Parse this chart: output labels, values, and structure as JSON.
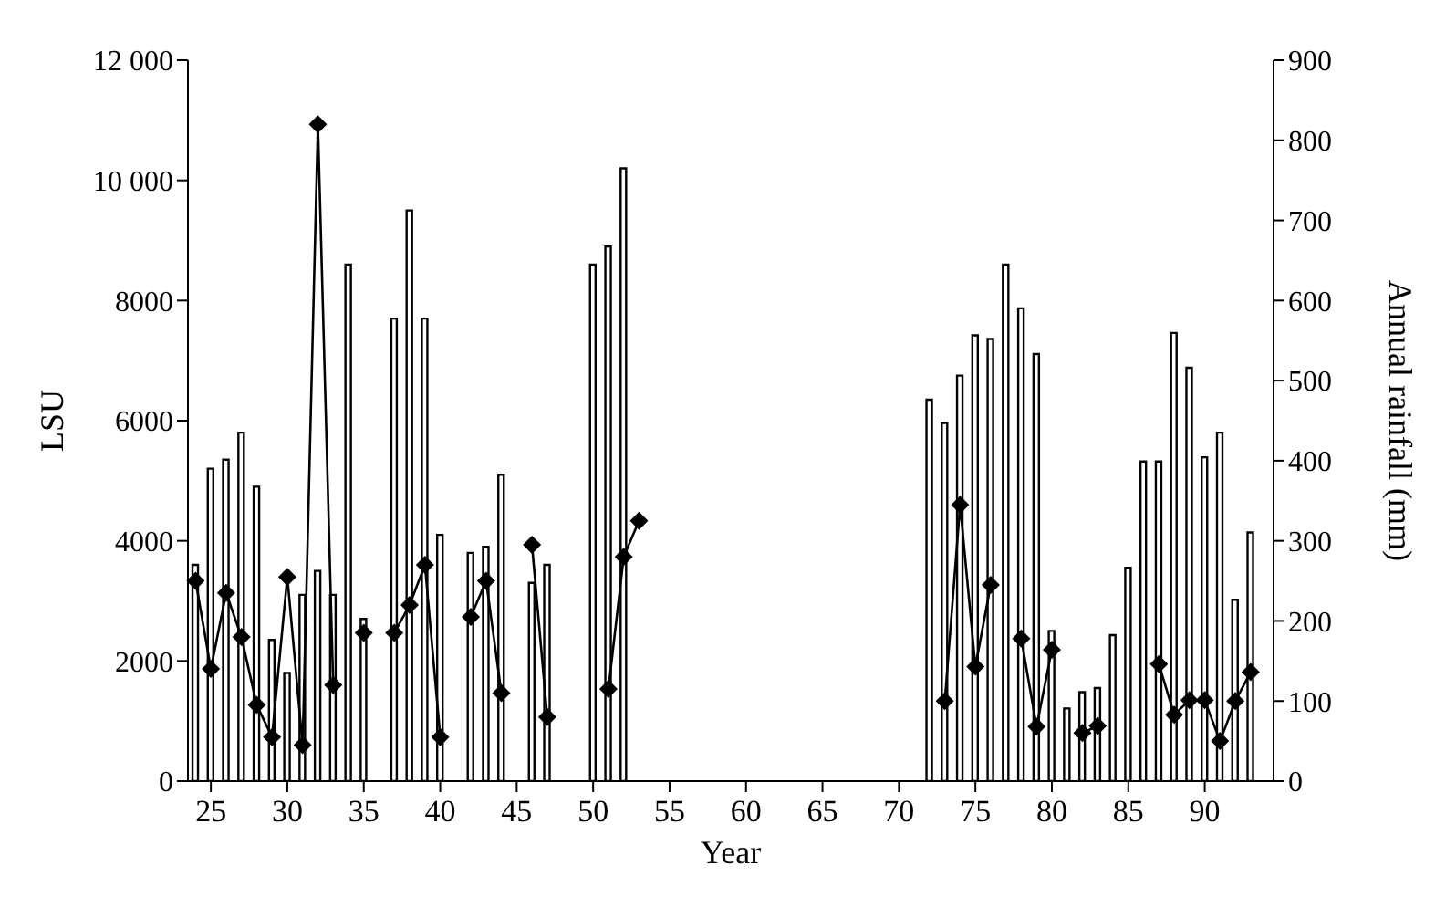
{
  "chart_data": {
    "type": "bar",
    "xlabel": "Year",
    "ylabel": "LSU",
    "y2label": "Annual rainfall (mm)",
    "categories": [
      null,
      "25",
      null,
      null,
      null,
      null,
      "30",
      null,
      null,
      null,
      null,
      "35",
      null,
      null,
      null,
      null,
      "40",
      null,
      null,
      null,
      null,
      "45",
      null,
      null,
      null,
      null,
      "50",
      null,
      null,
      null,
      null,
      "55",
      null,
      null,
      null,
      null,
      "60",
      null,
      null,
      null,
      null,
      "65",
      null,
      null,
      null,
      null,
      "70",
      null,
      null,
      null,
      null,
      "75",
      null,
      null,
      null,
      null,
      "80",
      null,
      null,
      null,
      null,
      "85",
      null,
      null,
      null,
      null,
      "90",
      null,
      null,
      null,
      null
    ],
    "series": [
      {
        "color": "#000000",
        "values": [
          3600,
          5200,
          5350,
          5800,
          4900,
          2350,
          1800,
          3100,
          3500,
          3100,
          8600,
          2700,
          null,
          7700,
          9500,
          7700,
          4100,
          null,
          3800,
          3900,
          5100,
          null,
          3300,
          3600,
          null,
          null,
          8600,
          8900,
          10200,
          null,
          null,
          null,
          null,
          null,
          null,
          null,
          null,
          null,
          null,
          null,
          null,
          null,
          null,
          null,
          null,
          null,
          null,
          null,
          6350,
          5960,
          6750,
          7420,
          7360,
          8600,
          7870,
          7110,
          2500,
          1210,
          1480,
          1550,
          2430,
          3550,
          5320,
          5320,
          7460,
          6880,
          5390,
          5800,
          3020,
          4140,
          null
        ]
      },
      {
        "type": "line",
        "axis": "y2",
        "color": "#000000",
        "marker": "diamond",
        "line_style": "solid",
        "values": [
          250,
          140,
          235,
          180,
          95,
          55,
          255,
          45,
          820,
          120,
          null,
          185,
          null,
          185,
          220,
          270,
          55,
          null,
          205,
          250,
          110,
          null,
          295,
          80,
          null,
          null,
          null,
          115,
          280,
          325,
          null,
          null,
          null,
          null,
          null,
          null,
          null,
          null,
          null,
          null,
          null,
          null,
          null,
          null,
          null,
          null,
          null,
          null,
          null,
          100,
          345,
          143,
          245,
          null,
          178,
          68,
          164,
          null,
          60,
          69,
          null,
          null,
          null,
          146,
          83,
          101,
          101,
          50,
          100,
          136,
          null
        ]
      }
    ],
    "ylim": [
      0,
      12000
    ],
    "yticks": [
      0,
      2000,
      4000,
      6000,
      8000,
      {
        "value": 10000,
        "label": "10 000"
      },
      {
        "value": 12000,
        "label": "12 000"
      }
    ],
    "y2lim": [
      0,
      900
    ],
    "y2ticks": [
      0,
      100,
      200,
      300,
      400,
      500,
      600,
      700,
      800,
      900
    ],
    "grid": false,
    "legend": false
  }
}
